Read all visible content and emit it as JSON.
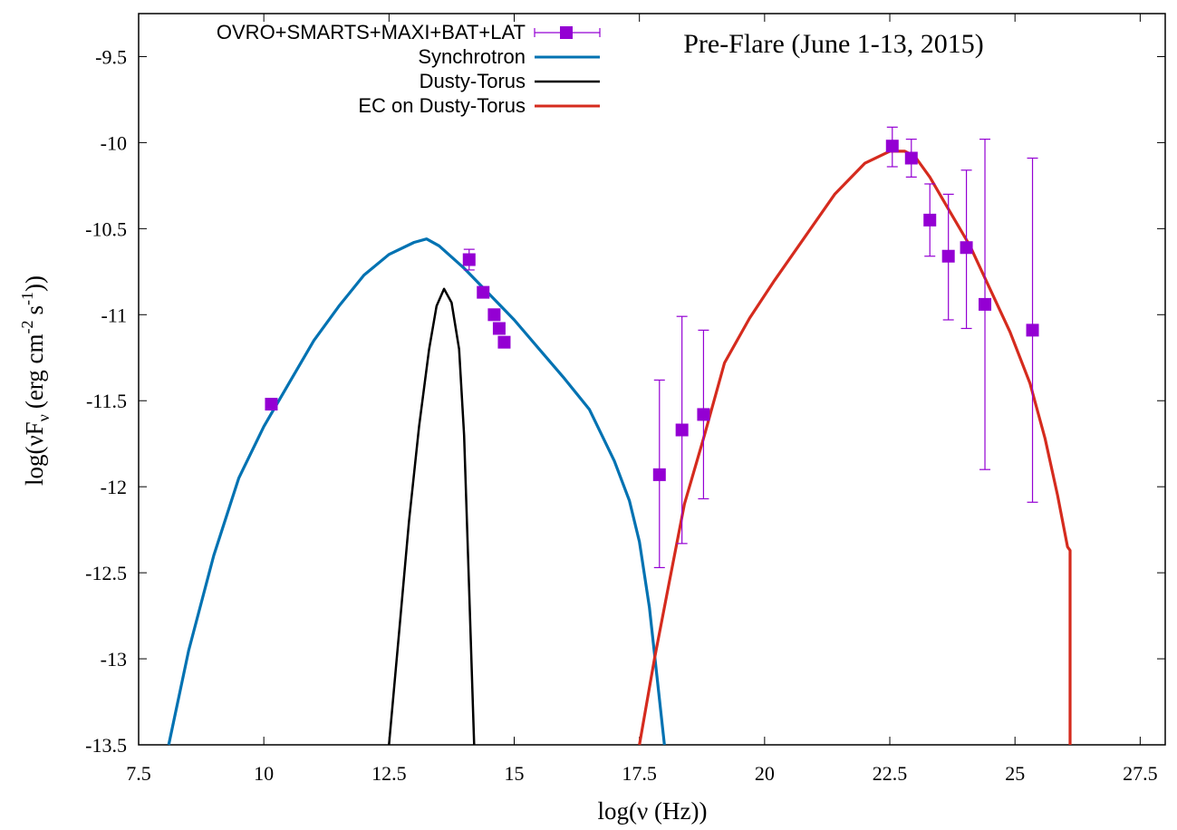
{
  "chart_data": {
    "type": "line",
    "title": "Pre-Flare (June 1-13, 2015)",
    "xlabel": "log(ν (Hz))",
    "ylabel_main": "log(νF",
    "ylabel_sub": "ν",
    "ylabel_units": "(erg cm",
    "ylabel_exp1": "-2",
    "ylabel_s": "s",
    "ylabel_exp2": "-1",
    "ylabel_close": "))",
    "xlim": [
      7.5,
      28.0
    ],
    "ylim": [
      -13.5,
      -9.25
    ],
    "grid": false,
    "legend_placement": "top-left",
    "x_ticks": [
      7.5,
      10,
      12.5,
      15,
      17.5,
      20,
      22.5,
      25,
      27.5
    ],
    "x_tick_labels": [
      "7.5",
      "10",
      "12.5",
      "15",
      "17.5",
      "20",
      "22.5",
      "25",
      "27.5"
    ],
    "y_ticks": [
      -13.5,
      -13,
      -12.5,
      -12,
      -11.5,
      -11,
      -10.5,
      -10,
      -9.5
    ],
    "y_tick_labels": [
      "-13.5",
      "-13",
      "-12.5",
      "-12",
      "-11.5",
      "-11",
      "-10.5",
      "-10",
      "-9.5"
    ],
    "data_series": {
      "name": "OVRO+SMARTS+MAXI+BAT+LAT",
      "color": "#9400d3",
      "points": [
        {
          "x": 10.15,
          "y": -11.52
        },
        {
          "x": 14.1,
          "y": -10.68,
          "ylo": -10.74,
          "yhi": -10.62
        },
        {
          "x": 14.38,
          "y": -10.87
        },
        {
          "x": 14.6,
          "y": -11.0
        },
        {
          "x": 14.7,
          "y": -11.08
        },
        {
          "x": 14.8,
          "y": -11.16
        },
        {
          "x": 17.9,
          "y": -11.93,
          "ylo": -12.47,
          "yhi": -11.38
        },
        {
          "x": 18.35,
          "y": -11.67,
          "ylo": -12.33,
          "yhi": -11.01
        },
        {
          "x": 18.78,
          "y": -11.58,
          "ylo": -12.07,
          "yhi": -11.09
        },
        {
          "x": 22.55,
          "y": -10.02,
          "ylo": -10.14,
          "yhi": -9.91
        },
        {
          "x": 22.93,
          "y": -10.09,
          "ylo": -10.2,
          "yhi": -9.98
        },
        {
          "x": 23.3,
          "y": -10.45,
          "ylo": -10.66,
          "yhi": -10.24
        },
        {
          "x": 23.67,
          "y": -10.66,
          "ylo": -11.03,
          "yhi": -10.3
        },
        {
          "x": 24.03,
          "y": -10.61,
          "ylo": -11.08,
          "yhi": -10.16
        },
        {
          "x": 24.4,
          "y": -10.94,
          "ylo": -11.9,
          "yhi": -9.98
        },
        {
          "x": 25.35,
          "y": -11.09,
          "ylo": -12.09,
          "yhi": -10.09
        }
      ]
    },
    "series": [
      {
        "name": "Synchrotron",
        "color": "#0072b2",
        "x": [
          8.1,
          8.5,
          9.0,
          9.5,
          10.0,
          10.5,
          11.0,
          11.5,
          12.0,
          12.5,
          13.0,
          13.25,
          13.5,
          14.0,
          14.5,
          15.0,
          15.5,
          16.0,
          16.5,
          17.0,
          17.3,
          17.5,
          17.7,
          17.85,
          18.0
        ],
        "y": [
          -13.5,
          -12.95,
          -12.4,
          -11.95,
          -11.65,
          -11.4,
          -11.15,
          -10.95,
          -10.77,
          -10.65,
          -10.58,
          -10.56,
          -10.6,
          -10.73,
          -10.88,
          -11.03,
          -11.2,
          -11.37,
          -11.55,
          -11.85,
          -12.08,
          -12.32,
          -12.7,
          -13.1,
          -13.5
        ]
      },
      {
        "name": "Dusty-Torus",
        "color": "#000000",
        "x": [
          12.5,
          12.7,
          12.9,
          13.1,
          13.3,
          13.45,
          13.6,
          13.75,
          13.9,
          14.0,
          14.1,
          14.2
        ],
        "y": [
          -13.5,
          -12.85,
          -12.2,
          -11.65,
          -11.2,
          -10.95,
          -10.85,
          -10.93,
          -11.2,
          -11.7,
          -12.6,
          -13.5
        ]
      },
      {
        "name": "EC on Dusty-Torus",
        "color": "#d52b1e",
        "x": [
          17.5,
          17.8,
          18.1,
          18.4,
          18.8,
          19.2,
          19.7,
          20.2,
          20.8,
          21.4,
          22.0,
          22.5,
          22.8,
          23.0,
          23.3,
          23.7,
          24.1,
          24.5,
          24.9,
          25.3,
          25.6,
          25.85,
          26.05,
          26.1,
          26.1
        ],
        "y": [
          -13.5,
          -13.0,
          -12.55,
          -12.1,
          -11.7,
          -11.28,
          -11.02,
          -10.8,
          -10.55,
          -10.3,
          -10.12,
          -10.05,
          -10.05,
          -10.08,
          -10.2,
          -10.4,
          -10.6,
          -10.85,
          -11.1,
          -11.4,
          -11.72,
          -12.05,
          -12.35,
          -12.37,
          -13.5
        ]
      }
    ]
  }
}
